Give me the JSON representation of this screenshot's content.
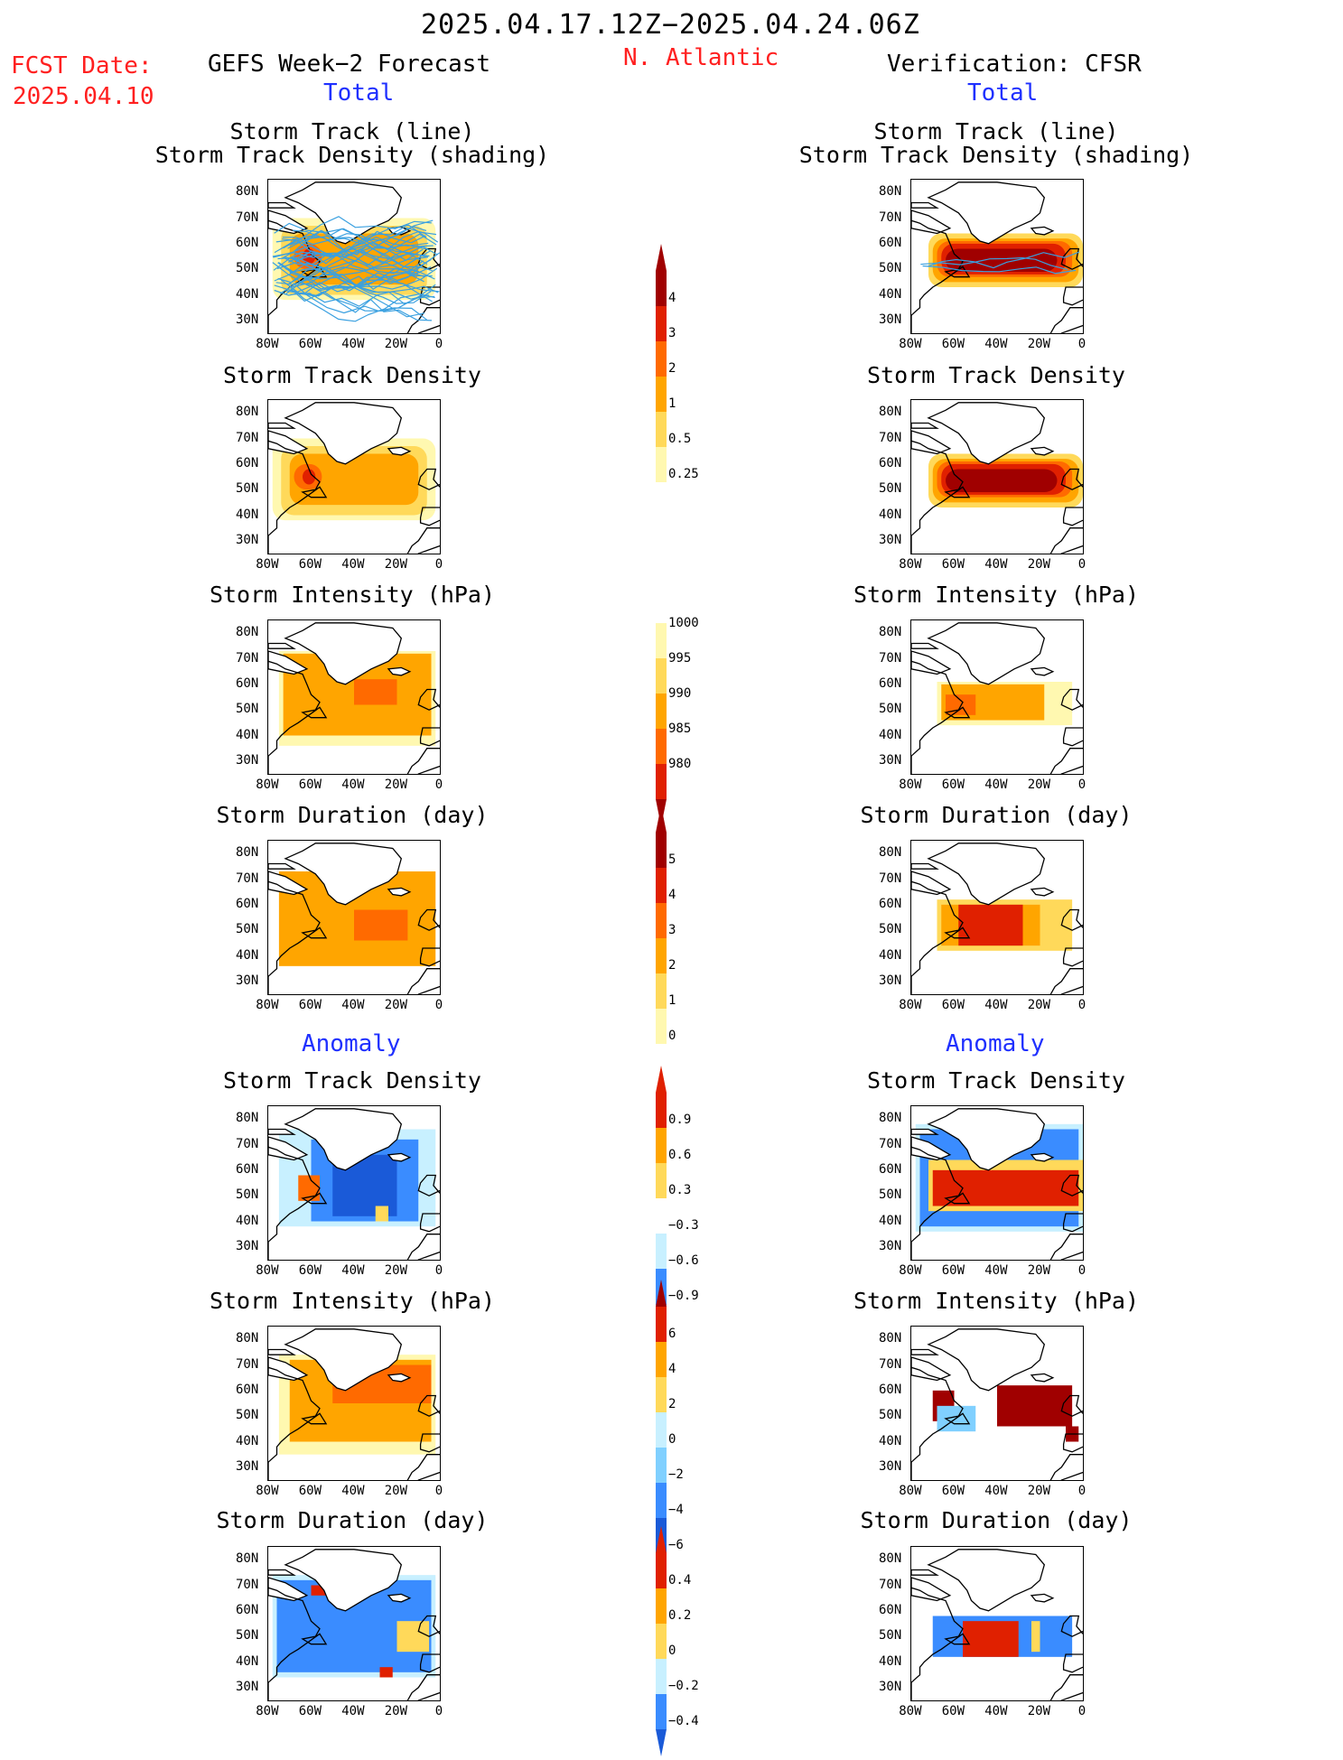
{
  "header": {
    "date_range": "2025.04.17.12Z−2025.04.24.06Z",
    "fcst_label": "FCST Date:",
    "fcst_date": "2025.04.10",
    "left_title": "GEFS Week−2 Forecast",
    "region": "N. Atlantic",
    "right_title": "Verification: CFSR",
    "total_left": "Total",
    "total_right": "Total",
    "anomaly_left": "Anomaly",
    "anomaly_right": "Anomaly"
  },
  "axes": {
    "y_ticks": [
      "80N",
      "70N",
      "60N",
      "50N",
      "40N",
      "30N"
    ],
    "x_ticks": [
      "80W",
      "60W",
      "40W",
      "20W",
      "0"
    ]
  },
  "panels": {
    "track_line_l1": "Storm Track (line)",
    "track_line_l2": "Storm Track Density (shading)",
    "track_density": "Storm Track Density",
    "intensity": "Storm Intensity (hPa)",
    "duration": "Storm Duration (day)"
  },
  "colorbars": {
    "density": [
      "4",
      "3",
      "2",
      "1",
      "0.5",
      "0.25"
    ],
    "intensity": [
      "1000",
      "995",
      "990",
      "985",
      "980"
    ],
    "duration": [
      "5",
      "4",
      "3",
      "2",
      "1",
      "0"
    ],
    "anom_density": [
      "0.9",
      "0.6",
      "0.3",
      "−0.3",
      "−0.6",
      "−0.9"
    ],
    "anom_intensity": [
      "6",
      "4",
      "2",
      "0",
      "−2",
      "−4",
      "−6"
    ],
    "anom_duration": [
      "0.4",
      "0.2",
      "0",
      "−0.2",
      "−0.4"
    ]
  },
  "colors": {
    "warm": [
      "#fff8b0",
      "#ffd95a",
      "#ffa500",
      "#ff6a00",
      "#e02000",
      "#a00000"
    ],
    "cool": [
      "#c8f0ff",
      "#80d0ff",
      "#3a8cff",
      "#1a5ad8"
    ],
    "track": "#3aa0e0"
  }
}
